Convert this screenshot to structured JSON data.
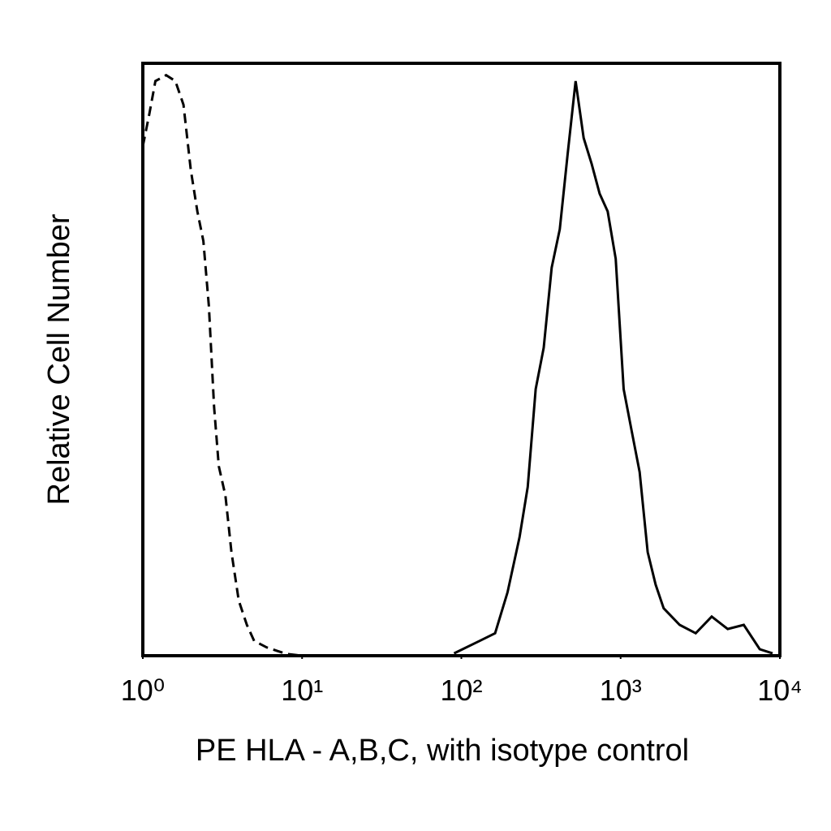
{
  "chart_data": {
    "type": "line",
    "x_label": "PE HLA - A,B,C, with isotype control",
    "y_label": "Relative Cell Number",
    "xscale": "log",
    "xlim": [
      1,
      10000
    ],
    "xticks": [
      {
        "value": 1,
        "label": "10⁰"
      },
      {
        "value": 10,
        "label": "10¹"
      },
      {
        "value": 100,
        "label": "10²"
      },
      {
        "value": 1000,
        "label": "10³"
      },
      {
        "value": 10000,
        "label": "10⁴"
      }
    ],
    "ylim": [
      0,
      100
    ],
    "grid": false,
    "series": [
      {
        "color": "#000000",
        "linestyle": "dashed",
        "x": [
          1.0,
          1.1,
          1.2,
          1.4,
          1.6,
          1.8,
          2.0,
          2.2,
          2.4,
          2.6,
          2.8,
          3.0,
          3.3,
          3.6,
          4.0,
          4.5,
          5.0,
          6.0,
          7.0,
          8.0,
          10
        ],
        "values": [
          86,
          91.5,
          97,
          98,
          97,
          93,
          82,
          75,
          70,
          59,
          42,
          32,
          27,
          17.5,
          9.3,
          5.2,
          2.5,
          1.4,
          0.8,
          0.3,
          0
        ]
      },
      {
        "color": "#000000",
        "linestyle": "solid",
        "x": [
          90,
          130,
          163,
          195,
          232,
          261,
          293,
          329,
          369,
          415,
          465,
          522,
          586,
          658,
          738,
          829,
          931,
          1045,
          1173,
          1317,
          1479,
          1660,
          1864,
          2349,
          2962,
          3733,
          4705,
          5931,
          7476,
          9000
        ],
        "values": [
          0.4,
          2.5,
          3.8,
          10.7,
          20,
          28.5,
          45,
          52,
          65.5,
          72,
          84.7,
          97,
          87.4,
          83,
          78,
          75,
          67,
          45,
          38,
          31,
          17.5,
          12,
          8,
          5.2,
          3.8,
          6.6,
          4.5,
          5.2,
          1.1,
          0.4
        ]
      }
    ]
  }
}
